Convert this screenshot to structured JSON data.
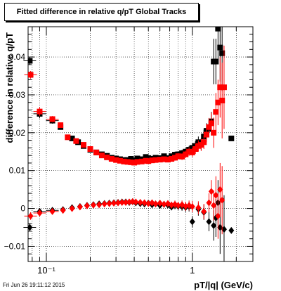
{
  "chart_data": {
    "type": "scatter",
    "title": "Fitted difference in relative q/pT  Global Tracks",
    "xlabel": "pT/|q| (GeV/c)",
    "ylabel": "difference in relative q/pT",
    "x_scale": "log",
    "xlim": [
      0.075,
      2.6
    ],
    "ylim": [
      -0.014,
      0.048
    ],
    "grid": true,
    "legend": "none",
    "y_ticks": [
      {
        "v": -0.01,
        "label": "−0.01"
      },
      {
        "v": 0,
        "label": "0"
      },
      {
        "v": 0.01,
        "label": "0.01"
      },
      {
        "v": 0.02,
        "label": "0.02"
      },
      {
        "v": 0.03,
        "label": "0.03"
      },
      {
        "v": 0.04,
        "label": "0.04"
      }
    ],
    "x_ticks": [
      {
        "v": 0.1,
        "label": "10⁻¹"
      },
      {
        "v": 1,
        "label": "1"
      }
    ],
    "colors": {
      "black": "#000000",
      "red": "#ff0000"
    },
    "series": [
      {
        "color": "#000000",
        "marker": "square",
        "points": [
          [
            0.077,
            0.039,
            0.001
          ],
          [
            0.09,
            0.025,
            0.0012
          ],
          [
            0.11,
            0.0232,
            0.0008
          ],
          [
            0.125,
            0.0215,
            0.0006
          ],
          [
            0.15,
            0.0185,
            0.0006
          ],
          [
            0.165,
            0.0175,
            0.0006
          ],
          [
            0.18,
            0.0165,
            0.0005
          ],
          [
            0.2,
            0.0155,
            0.0005
          ],
          [
            0.22,
            0.0148,
            0.0005
          ],
          [
            0.24,
            0.0143,
            0.0005
          ],
          [
            0.26,
            0.0139,
            0.0005
          ],
          [
            0.28,
            0.0134,
            0.0005
          ],
          [
            0.3,
            0.0132,
            0.0005
          ],
          [
            0.32,
            0.013,
            0.0005
          ],
          [
            0.34,
            0.0128,
            0.0005
          ],
          [
            0.36,
            0.0128,
            0.0005
          ],
          [
            0.38,
            0.0131,
            0.0005
          ],
          [
            0.4,
            0.0127,
            0.0005
          ],
          [
            0.42,
            0.0132,
            0.0005
          ],
          [
            0.45,
            0.013,
            0.0005
          ],
          [
            0.48,
            0.0136,
            0.0006
          ],
          [
            0.5,
            0.0133,
            0.0006
          ],
          [
            0.53,
            0.0131,
            0.0006
          ],
          [
            0.56,
            0.0134,
            0.0006
          ],
          [
            0.6,
            0.0133,
            0.0006
          ],
          [
            0.64,
            0.0138,
            0.0007
          ],
          [
            0.68,
            0.0133,
            0.0007
          ],
          [
            0.72,
            0.0138,
            0.0007
          ],
          [
            0.76,
            0.0142,
            0.0008
          ],
          [
            0.8,
            0.0143,
            0.0008
          ],
          [
            0.85,
            0.0146,
            0.0009
          ],
          [
            0.9,
            0.015,
            0.001
          ],
          [
            0.95,
            0.0155,
            0.001
          ],
          [
            1.0,
            0.016,
            0.0012
          ],
          [
            1.05,
            0.0165,
            0.0013
          ],
          [
            1.1,
            0.0175,
            0.0015
          ],
          [
            1.15,
            0.017,
            0.0016
          ],
          [
            1.2,
            0.019,
            0.0018
          ],
          [
            1.25,
            0.0205,
            0.002
          ],
          [
            1.3,
            0.021,
            0.0022
          ],
          [
            1.35,
            0.023,
            0.0025
          ],
          [
            1.4,
            0.0388,
            0.006
          ],
          [
            1.45,
            0.0388,
            0.006
          ],
          [
            1.5,
            0.0475,
            0.008
          ],
          [
            1.55,
            0.0425,
            0.009
          ],
          [
            1.6,
            0.041,
            0.01
          ],
          [
            1.85,
            0.0185,
            0.0
          ]
        ]
      },
      {
        "color": "#ff0000",
        "marker": "square",
        "points": [
          [
            0.078,
            0.0353,
            0.001
          ],
          [
            0.09,
            0.0256,
            0.0012
          ],
          [
            0.11,
            0.0236,
            0.0008
          ],
          [
            0.125,
            0.022,
            0.0006
          ],
          [
            0.14,
            0.0188,
            0.0006
          ],
          [
            0.16,
            0.0178,
            0.0006
          ],
          [
            0.18,
            0.0168,
            0.0005
          ],
          [
            0.2,
            0.0157,
            0.0005
          ],
          [
            0.22,
            0.0148,
            0.0005
          ],
          [
            0.24,
            0.014,
            0.0005
          ],
          [
            0.26,
            0.0135,
            0.0005
          ],
          [
            0.28,
            0.0131,
            0.0005
          ],
          [
            0.3,
            0.0128,
            0.0005
          ],
          [
            0.32,
            0.0126,
            0.0005
          ],
          [
            0.34,
            0.0124,
            0.0005
          ],
          [
            0.36,
            0.0123,
            0.0005
          ],
          [
            0.38,
            0.0122,
            0.0005
          ],
          [
            0.4,
            0.0121,
            0.0005
          ],
          [
            0.42,
            0.0123,
            0.0005
          ],
          [
            0.45,
            0.0124,
            0.0005
          ],
          [
            0.48,
            0.0126,
            0.0006
          ],
          [
            0.5,
            0.0125,
            0.0006
          ],
          [
            0.53,
            0.0127,
            0.0006
          ],
          [
            0.56,
            0.0128,
            0.0006
          ],
          [
            0.6,
            0.0129,
            0.0006
          ],
          [
            0.64,
            0.013,
            0.0007
          ],
          [
            0.68,
            0.0129,
            0.0007
          ],
          [
            0.72,
            0.0131,
            0.0007
          ],
          [
            0.76,
            0.0134,
            0.0008
          ],
          [
            0.8,
            0.0138,
            0.0008
          ],
          [
            0.85,
            0.0137,
            0.0009
          ],
          [
            0.9,
            0.0143,
            0.001
          ],
          [
            0.95,
            0.015,
            0.0011
          ],
          [
            1.0,
            0.0148,
            0.0012
          ],
          [
            1.05,
            0.0157,
            0.0013
          ],
          [
            1.1,
            0.0165,
            0.0015
          ],
          [
            1.15,
            0.0168,
            0.0016
          ],
          [
            1.2,
            0.0175,
            0.0018
          ],
          [
            1.25,
            0.0195,
            0.002
          ],
          [
            1.3,
            0.0215,
            0.0024
          ],
          [
            1.35,
            0.0225,
            0.0028
          ],
          [
            1.4,
            0.02,
            0.004
          ],
          [
            1.45,
            0.0255,
            0.005
          ],
          [
            1.5,
            0.028,
            0.006
          ],
          [
            1.55,
            0.032,
            0.008
          ],
          [
            1.6,
            0.0285,
            0.01
          ],
          [
            1.65,
            0.032,
            0.011
          ]
        ]
      },
      {
        "color": "#000000",
        "marker": "diamond",
        "points": [
          [
            0.077,
            -0.005,
            0.001
          ],
          [
            0.09,
            -0.0008,
            0.0008
          ],
          [
            0.11,
            -0.0005,
            0.0007
          ],
          [
            0.13,
            -0.0003,
            0.0006
          ],
          [
            0.15,
            0.0002,
            0.0005
          ],
          [
            0.17,
            0.0005,
            0.0005
          ],
          [
            0.19,
            0.0008,
            0.0005
          ],
          [
            0.21,
            0.001,
            0.0005
          ],
          [
            0.23,
            0.0012,
            0.0005
          ],
          [
            0.25,
            0.0013,
            0.0005
          ],
          [
            0.27,
            0.0014,
            0.0005
          ],
          [
            0.29,
            0.0015,
            0.0005
          ],
          [
            0.31,
            0.0016,
            0.0005
          ],
          [
            0.33,
            0.0017,
            0.0005
          ],
          [
            0.35,
            0.0017,
            0.0005
          ],
          [
            0.37,
            0.0016,
            0.0005
          ],
          [
            0.39,
            0.0018,
            0.0005
          ],
          [
            0.41,
            0.0015,
            0.0006
          ],
          [
            0.44,
            0.0013,
            0.0006
          ],
          [
            0.47,
            0.0012,
            0.0006
          ],
          [
            0.5,
            0.0014,
            0.0006
          ],
          [
            0.53,
            0.001,
            0.0007
          ],
          [
            0.56,
            0.0012,
            0.0007
          ],
          [
            0.6,
            0.0008,
            0.0007
          ],
          [
            0.64,
            0.0011,
            0.0008
          ],
          [
            0.68,
            0.0009,
            0.0008
          ],
          [
            0.72,
            0.0004,
            0.0009
          ],
          [
            0.76,
            0.0008,
            0.001
          ],
          [
            0.8,
            0.0006,
            0.001
          ],
          [
            0.85,
            0.0005,
            0.0011
          ],
          [
            0.9,
            0.0003,
            0.0012
          ],
          [
            0.95,
            0.0005,
            0.0013
          ],
          [
            1.0,
            -0.0035,
            0.0015
          ],
          [
            1.1,
            -0.0002,
            0.0017
          ],
          [
            1.2,
            -0.001,
            0.002
          ],
          [
            1.3,
            -0.0035,
            0.0025
          ],
          [
            1.4,
            -0.0045,
            0.004
          ],
          [
            1.45,
            -0.0025,
            0.005
          ],
          [
            1.5,
            0.0015,
            0.006
          ],
          [
            1.55,
            -0.005,
            0.007
          ],
          [
            1.65,
            -0.0055,
            0.009
          ],
          [
            1.85,
            -0.0058,
            0.0
          ]
        ]
      },
      {
        "color": "#ff0000",
        "marker": "diamond",
        "points": [
          [
            0.078,
            -0.002,
            0.001
          ],
          [
            0.09,
            -0.0012,
            0.0008
          ],
          [
            0.11,
            -0.0008,
            0.0007
          ],
          [
            0.13,
            -0.0005,
            0.0006
          ],
          [
            0.15,
            0.0,
            0.0005
          ],
          [
            0.17,
            0.0004,
            0.0005
          ],
          [
            0.19,
            0.0007,
            0.0005
          ],
          [
            0.21,
            0.0009,
            0.0005
          ],
          [
            0.23,
            0.001,
            0.0005
          ],
          [
            0.25,
            0.0012,
            0.0005
          ],
          [
            0.27,
            0.0013,
            0.0005
          ],
          [
            0.29,
            0.0014,
            0.0005
          ],
          [
            0.31,
            0.0015,
            0.0005
          ],
          [
            0.33,
            0.0016,
            0.0005
          ],
          [
            0.35,
            0.0016,
            0.0005
          ],
          [
            0.37,
            0.0017,
            0.0005
          ],
          [
            0.39,
            0.0018,
            0.0005
          ],
          [
            0.41,
            0.0017,
            0.0006
          ],
          [
            0.44,
            0.0016,
            0.0006
          ],
          [
            0.47,
            0.0015,
            0.0006
          ],
          [
            0.5,
            0.0013,
            0.0006
          ],
          [
            0.53,
            0.0015,
            0.0007
          ],
          [
            0.56,
            0.0012,
            0.0007
          ],
          [
            0.6,
            0.0014,
            0.0007
          ],
          [
            0.64,
            0.0011,
            0.0008
          ],
          [
            0.68,
            0.0013,
            0.0008
          ],
          [
            0.72,
            0.0009,
            0.0009
          ],
          [
            0.76,
            0.0011,
            0.001
          ],
          [
            0.8,
            0.0008,
            0.001
          ],
          [
            0.85,
            0.001,
            0.0011
          ],
          [
            0.9,
            0.0006,
            0.0012
          ],
          [
            0.95,
            0.0008,
            0.0013
          ],
          [
            1.0,
            0.0005,
            0.0015
          ],
          [
            1.1,
            0.0002,
            0.0017
          ],
          [
            1.2,
            -0.0008,
            0.002
          ],
          [
            1.3,
            0.0015,
            0.0025
          ],
          [
            1.35,
            0.0045,
            0.003
          ],
          [
            1.4,
            0.0008,
            0.004
          ],
          [
            1.45,
            0.0035,
            0.005
          ],
          [
            1.5,
            -0.002,
            0.006
          ],
          [
            1.55,
            0.005,
            0.007
          ],
          [
            1.6,
            0.0022,
            0.009
          ]
        ]
      }
    ]
  },
  "footer": {
    "date": "Fri Jun 26 19:11:12 2015"
  }
}
